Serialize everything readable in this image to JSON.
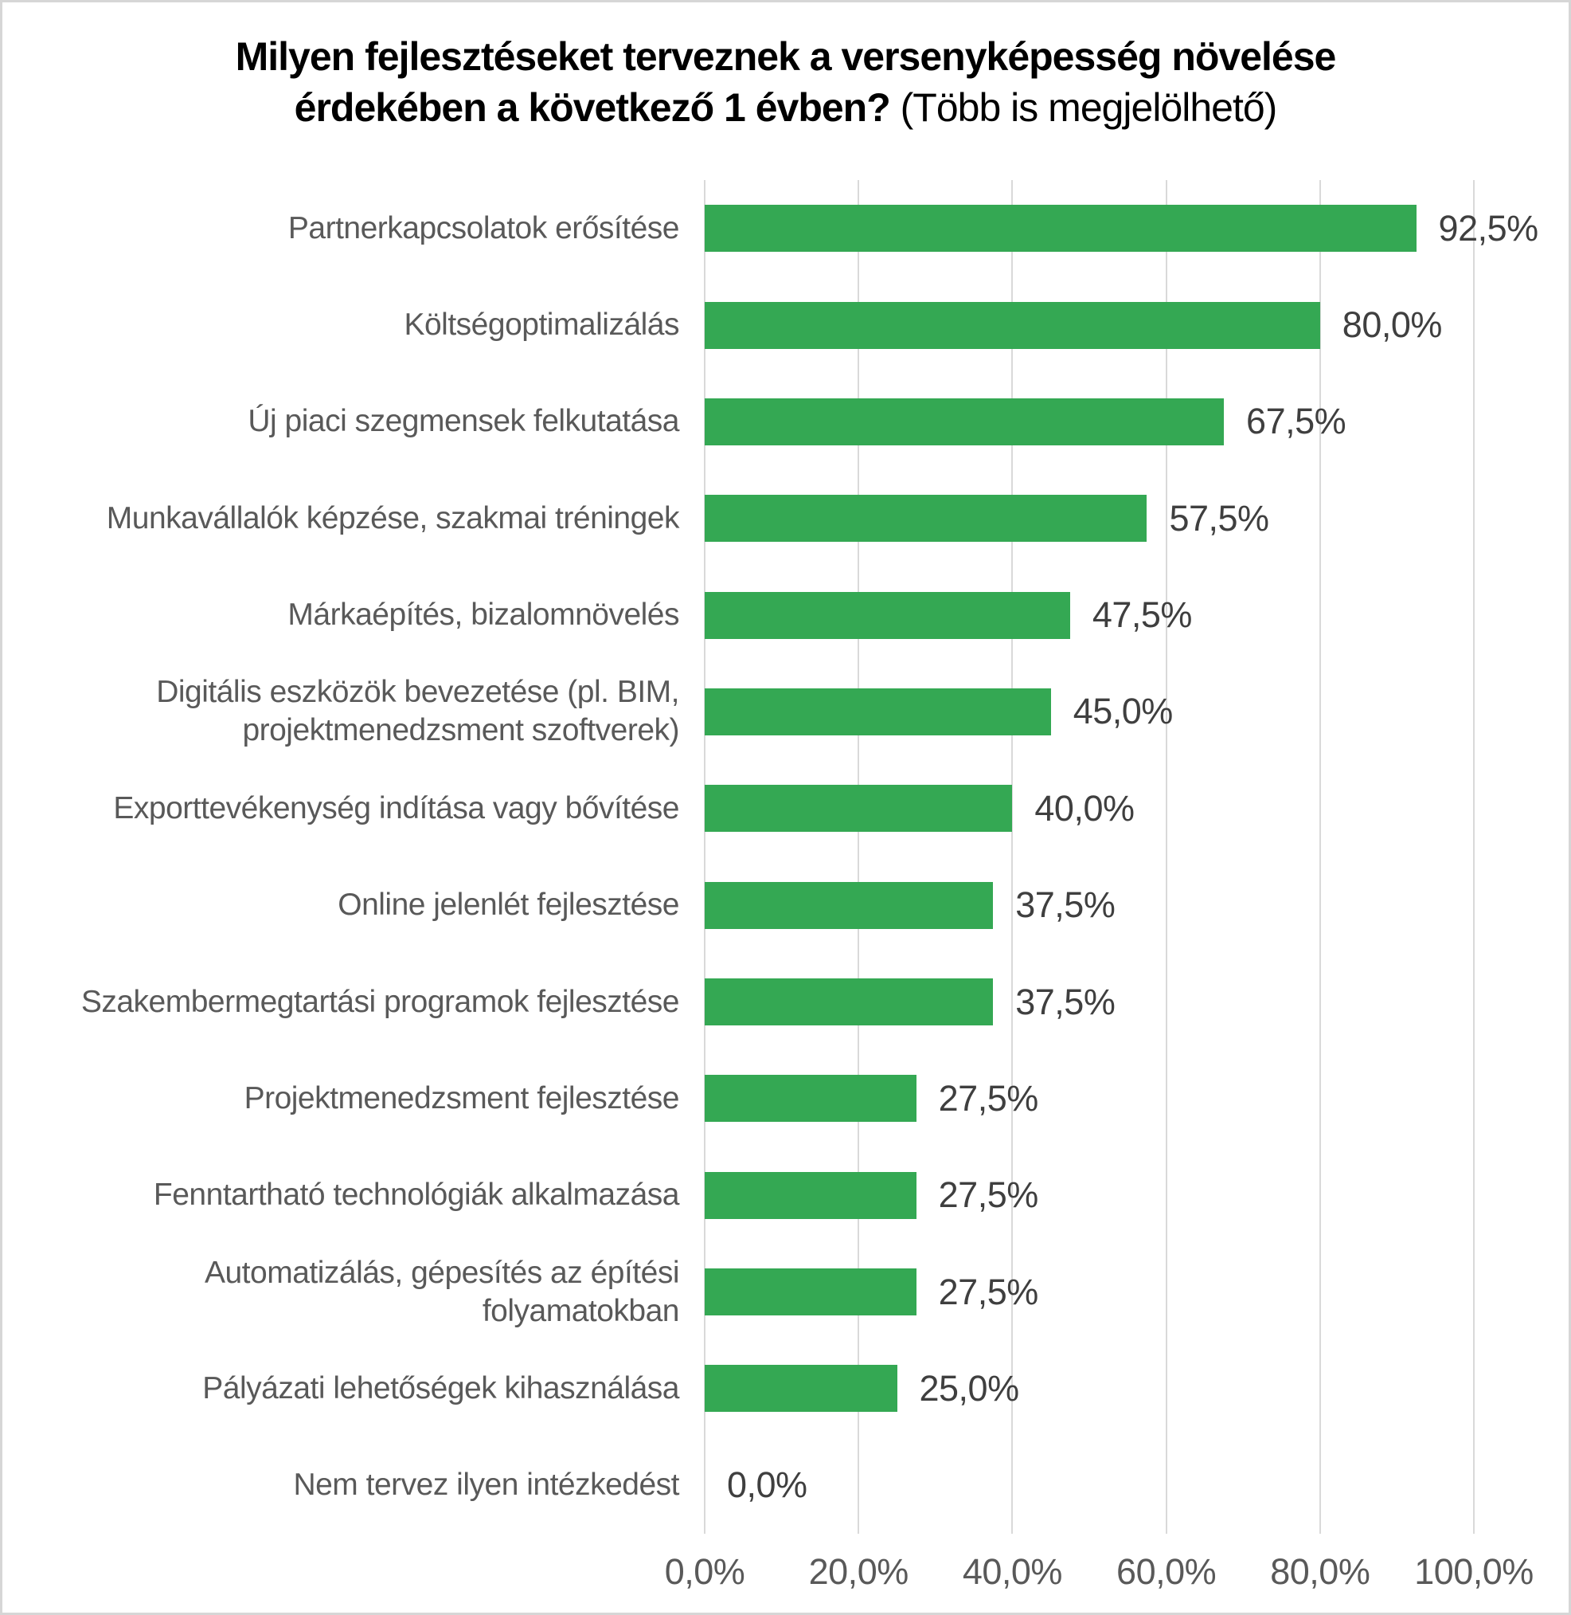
{
  "page": {
    "background": "#ffffff",
    "border_color": "#d6d6d6"
  },
  "title": {
    "line1": "Milyen fejlesztéseket terveznek a versenyképesség növelése",
    "line2_bold": "érdekében a következő 1 évben?",
    "line2_normal": " (Több is megjelölhető)"
  },
  "chart_data": {
    "type": "bar",
    "orientation": "horizontal",
    "title": "Milyen fejlesztéseket terveznek a versenyképesség növelése érdekében a következő 1 évben? (Több is megjelölhető)",
    "categories": [
      "Partnerkapcsolatok erősítése",
      "Költségoptimalizálás",
      "Új piaci szegmensek felkutatása",
      "Munkavállalók képzése, szakmai tréningek",
      "Márkaépítés, bizalomnövelés",
      "Digitális eszközök bevezetése (pl. BIM, projektmenedzsment szoftverek)",
      "Exporttevékenység indítása vagy bővítése",
      "Online jelenlét fejlesztése",
      "Szakembermegtartási programok fejlesztése",
      "Projektmenedzsment fejlesztése",
      "Fenntartható technológiák alkalmazása",
      "Automatizálás, gépesítés az építési folyamatokban",
      "Pályázati lehetőségek kihasználása",
      "Nem tervez ilyen intézkedést"
    ],
    "values": [
      92.5,
      80.0,
      67.5,
      57.5,
      47.5,
      45.0,
      40.0,
      37.5,
      37.5,
      27.5,
      27.5,
      27.5,
      25.0,
      0.0
    ],
    "value_labels": [
      "92,5%",
      "80,0%",
      "67,5%",
      "57,5%",
      "47,5%",
      "45,0%",
      "40,0%",
      "37,5%",
      "37,5%",
      "27,5%",
      "27,5%",
      "27,5%",
      "25,0%",
      "0,0%"
    ],
    "x_ticks": [
      "0,0%",
      "20,0%",
      "40,0%",
      "60,0%",
      "80,0%",
      "100,0%"
    ],
    "xlim": [
      0,
      100
    ],
    "x_tick_step": 20,
    "grid": "vertical",
    "legend": "none",
    "bar_color": "#34a853",
    "gridline_color": "#d9d9d9",
    "label_color": "#595959",
    "value_color": "#3f3f3f",
    "tick_color": "#595959"
  }
}
